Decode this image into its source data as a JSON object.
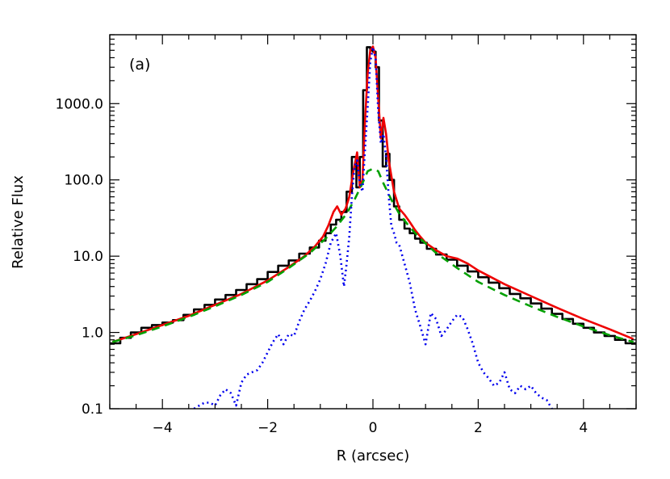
{
  "chart_data": {
    "type": "line",
    "title": "",
    "panel_label": "(a)",
    "xlabel": "R (arcsec)",
    "ylabel": "Relative Flux",
    "xlim": [
      -5,
      5
    ],
    "ylim": [
      0.1,
      8000
    ],
    "y_scale": "log",
    "grid": false,
    "legend": "none",
    "x_ticks": [
      -4,
      -2,
      0,
      2,
      4
    ],
    "x_tick_labels": [
      "−4",
      "−2",
      "0",
      "2",
      "4"
    ],
    "y_ticks": [
      0.1,
      1,
      10,
      100,
      1000
    ],
    "y_tick_labels": [
      "0.1",
      "1.0",
      "10.0",
      "100.0",
      "1000.0"
    ],
    "series": [
      {
        "style": "step",
        "color": "#000000",
        "dash": "",
        "x": [
          -4.9,
          -4.7,
          -4.5,
          -4.3,
          -4.1,
          -3.9,
          -3.7,
          -3.5,
          -3.3,
          -3.1,
          -2.9,
          -2.7,
          -2.5,
          -2.3,
          -2.1,
          -1.9,
          -1.7,
          -1.5,
          -1.3,
          -1.1,
          -0.95,
          -0.85,
          -0.75,
          -0.65,
          -0.55,
          -0.45,
          -0.35,
          -0.28,
          -0.22,
          -0.15,
          -0.08,
          -0.02,
          0.02,
          0.08,
          0.15,
          0.22,
          0.28,
          0.35,
          0.45,
          0.55,
          0.65,
          0.75,
          0.85,
          0.95,
          1.1,
          1.3,
          1.5,
          1.7,
          1.9,
          2.1,
          2.3,
          2.5,
          2.7,
          2.9,
          3.1,
          3.3,
          3.5,
          3.7,
          3.9,
          4.1,
          4.3,
          4.5,
          4.7,
          4.9
        ],
        "y": [
          0.72,
          0.85,
          1.0,
          1.15,
          1.25,
          1.35,
          1.45,
          1.7,
          2.0,
          2.3,
          2.7,
          3.1,
          3.6,
          4.3,
          5.0,
          6.2,
          7.5,
          8.8,
          10.8,
          13.0,
          16.0,
          20.0,
          26.0,
          30.0,
          38.0,
          70.0,
          200.0,
          80.0,
          200.0,
          1500.0,
          5500.0,
          5000.0,
          4800.0,
          3000.0,
          600.0,
          150.0,
          220.0,
          100.0,
          45.0,
          30.0,
          23.0,
          20.0,
          17.0,
          15.0,
          12.5,
          10.5,
          9.0,
          7.5,
          6.3,
          5.3,
          4.5,
          3.8,
          3.2,
          2.8,
          2.4,
          2.05,
          1.75,
          1.5,
          1.3,
          1.15,
          1.0,
          0.9,
          0.8,
          0.72
        ]
      },
      {
        "style": "line",
        "color": "#ee0000",
        "dash": "",
        "x": [
          -4.95,
          -4.5,
          -4.0,
          -3.5,
          -3.0,
          -2.5,
          -2.0,
          -1.6,
          -1.3,
          -1.1,
          -0.95,
          -0.85,
          -0.75,
          -0.68,
          -0.6,
          -0.52,
          -0.45,
          -0.38,
          -0.3,
          -0.25,
          -0.2,
          -0.15,
          -0.1,
          -0.05,
          0.0,
          0.05,
          0.1,
          0.15,
          0.2,
          0.25,
          0.3,
          0.4,
          0.5,
          0.6,
          0.7,
          0.8,
          0.9,
          1.0,
          1.2,
          1.4,
          1.6,
          1.8,
          2.0,
          2.5,
          3.0,
          3.5,
          4.0,
          4.5,
          4.95
        ],
        "y": [
          0.75,
          0.95,
          1.25,
          1.65,
          2.3,
          3.2,
          4.8,
          7.2,
          10.0,
          13.5,
          18.0,
          25.0,
          38.0,
          45.0,
          35.0,
          42.0,
          60.0,
          120.0,
          230.0,
          80.0,
          100.0,
          600.0,
          2500.0,
          5000.0,
          5600.0,
          4000.0,
          1200.0,
          350.0,
          650.0,
          400.0,
          180.0,
          70.0,
          42.0,
          35.0,
          28.0,
          22.0,
          18.0,
          15.0,
          12.0,
          10.0,
          9.3,
          8.0,
          6.5,
          4.3,
          3.0,
          2.1,
          1.5,
          1.1,
          0.82
        ]
      },
      {
        "style": "line",
        "color": "#00a000",
        "dash": "10,7",
        "x": [
          -4.95,
          -4.5,
          -4.0,
          -3.5,
          -3.0,
          -2.5,
          -2.0,
          -1.6,
          -1.2,
          -0.9,
          -0.7,
          -0.5,
          -0.35,
          -0.2,
          -0.1,
          0.0,
          0.1,
          0.2,
          0.35,
          0.5,
          0.7,
          0.9,
          1.2,
          1.6,
          2.0,
          2.5,
          3.0,
          3.5,
          4.0,
          4.5,
          4.95
        ],
        "y": [
          0.75,
          0.92,
          1.2,
          1.6,
          2.2,
          3.1,
          4.6,
          7.0,
          11.0,
          17.0,
          24.0,
          36.0,
          55.0,
          90.0,
          130.0,
          140.0,
          130.0,
          90.0,
          55.0,
          36.0,
          24.0,
          17.0,
          11.0,
          7.0,
          4.6,
          3.1,
          2.2,
          1.6,
          1.2,
          0.92,
          0.75
        ]
      },
      {
        "style": "line",
        "color": "#0000ee",
        "dash": "2,4",
        "x": [
          -3.4,
          -3.3,
          -3.2,
          -3.1,
          -3.0,
          -2.9,
          -2.8,
          -2.7,
          -2.6,
          -2.5,
          -2.4,
          -2.3,
          -2.2,
          -2.1,
          -2.0,
          -1.9,
          -1.8,
          -1.7,
          -1.6,
          -1.5,
          -1.4,
          -1.3,
          -1.2,
          -1.1,
          -1.0,
          -0.9,
          -0.8,
          -0.7,
          -0.62,
          -0.55,
          -0.5,
          -0.45,
          -0.4,
          -0.35,
          -0.3,
          -0.25,
          -0.2,
          -0.15,
          -0.1,
          -0.05,
          0.0,
          0.05,
          0.1,
          0.15,
          0.2,
          0.25,
          0.3,
          0.35,
          0.4,
          0.45,
          0.5,
          0.6,
          0.7,
          0.8,
          0.9,
          1.0,
          1.1,
          1.2,
          1.3,
          1.4,
          1.5,
          1.6,
          1.7,
          1.8,
          1.9,
          2.0,
          2.1,
          2.2,
          2.3,
          2.4,
          2.5,
          2.6,
          2.7,
          2.8,
          2.9,
          3.0,
          3.1,
          3.2,
          3.3,
          3.4
        ],
        "y": [
          0.1,
          0.11,
          0.12,
          0.12,
          0.11,
          0.15,
          0.18,
          0.16,
          0.11,
          0.22,
          0.28,
          0.3,
          0.32,
          0.4,
          0.55,
          0.75,
          0.95,
          0.7,
          0.95,
          0.9,
          1.4,
          2.0,
          2.6,
          3.5,
          5.0,
          8.0,
          15.0,
          20.0,
          10.0,
          4.0,
          8.0,
          18.0,
          60.0,
          150.0,
          180.0,
          90.0,
          70.0,
          250.0,
          900.0,
          3500.0,
          5500.0,
          4000.0,
          800.0,
          300.0,
          400.0,
          200.0,
          60.0,
          25.0,
          20.0,
          15.0,
          14.0,
          8.0,
          4.5,
          2.0,
          1.2,
          0.7,
          1.8,
          1.5,
          0.9,
          1.1,
          1.4,
          1.7,
          1.6,
          1.1,
          0.7,
          0.4,
          0.3,
          0.25,
          0.2,
          0.22,
          0.3,
          0.18,
          0.16,
          0.2,
          0.18,
          0.2,
          0.16,
          0.14,
          0.13,
          0.1
        ]
      }
    ]
  }
}
